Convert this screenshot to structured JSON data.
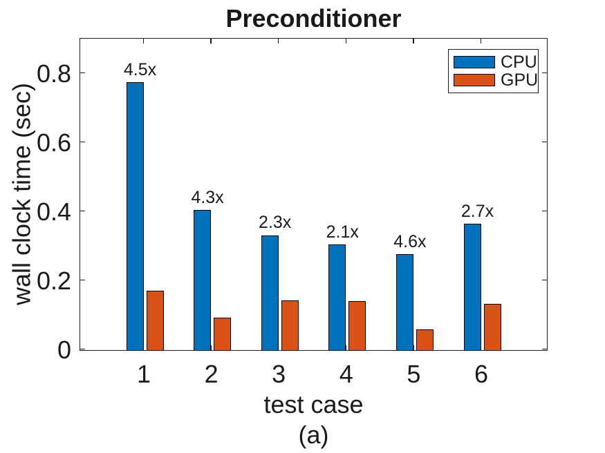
{
  "figure": {
    "title": "Preconditioner",
    "caption": "(a)"
  },
  "axes": {
    "xlabel": "test case",
    "ylabel": "wall clock time (sec)"
  },
  "legend": {
    "items": [
      {
        "label": "CPU",
        "color": "#0072BD"
      },
      {
        "label": "GPU",
        "color": "#D95319"
      }
    ]
  },
  "chart_data": {
    "type": "bar",
    "title": "Preconditioner",
    "categories": [
      "1",
      "2",
      "3",
      "4",
      "5",
      "6"
    ],
    "series": [
      {
        "name": "CPU",
        "color": "#0072BD",
        "values": [
          0.776,
          0.406,
          0.333,
          0.306,
          0.278,
          0.366
        ]
      },
      {
        "name": "GPU",
        "color": "#D95319",
        "values": [
          0.172,
          0.094,
          0.145,
          0.143,
          0.06,
          0.135
        ]
      }
    ],
    "bar_labels": [
      "4.5x",
      "4.3x",
      "2.3x",
      "2.1x",
      "4.6x",
      "2.7x"
    ],
    "xlabel": "test case",
    "ylabel": "wall clock time (sec)",
    "ylim": [
      0,
      0.9
    ],
    "yticks": [
      0,
      0.2,
      0.4,
      0.6,
      0.8
    ],
    "ytick_labels": [
      "0",
      "0.2",
      "0.4",
      "0.6",
      "0.8"
    ],
    "grid": false,
    "legend_position": "top-right",
    "subcaption": "(a)"
  }
}
